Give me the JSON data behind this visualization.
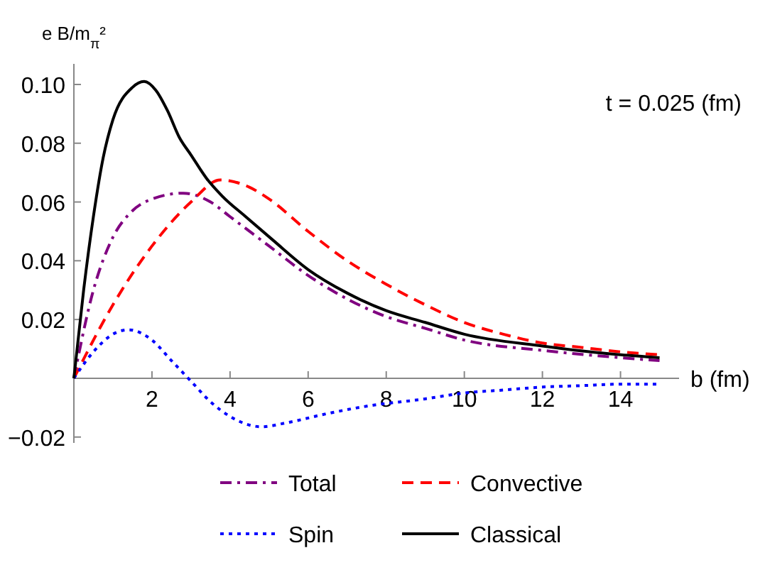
{
  "chart_data": {
    "type": "line",
    "ylabel": "e B/m$_{π}$²",
    "xlabel": "b (fm)",
    "annotations": [
      "t = 0.025 (fm)"
    ],
    "xlim": [
      0,
      15.5
    ],
    "ylim": [
      -0.022,
      0.107
    ],
    "xticks": [
      2,
      4,
      6,
      8,
      10,
      12,
      14
    ],
    "yticks": [
      -0.02,
      0.02,
      0.04,
      0.06,
      0.08,
      {
        "value": 0.1,
        "label": "0.10"
      }
    ],
    "grid": false,
    "legend": "bottom",
    "series": [
      {
        "name": "Total",
        "color": "#800080",
        "line_style": "dashdot",
        "x": [
          0,
          0.5,
          1,
          1.5,
          2,
          2.8,
          3.5,
          4,
          5,
          6,
          7,
          8,
          9,
          10,
          12,
          14,
          15
        ],
        "values": [
          0,
          0.03,
          0.048,
          0.057,
          0.061,
          0.063,
          0.06,
          0.055,
          0.045,
          0.035,
          0.027,
          0.021,
          0.017,
          0.013,
          0.0095,
          0.007,
          0.006
        ]
      },
      {
        "name": "Convective",
        "color": "#ff0000",
        "line_style": "dashed",
        "x": [
          0,
          1,
          2,
          3,
          3.75,
          4.5,
          5,
          6,
          7,
          8,
          9,
          10,
          11,
          12,
          13,
          14,
          15
        ],
        "values": [
          0,
          0.025,
          0.045,
          0.06,
          0.0675,
          0.065,
          0.061,
          0.05,
          0.04,
          0.032,
          0.025,
          0.019,
          0.015,
          0.012,
          0.0105,
          0.009,
          0.008
        ]
      },
      {
        "name": "Spin",
        "color": "#0000ff",
        "line_style": "dotted",
        "x": [
          0,
          0.5,
          1,
          1.4,
          2,
          2.5,
          3,
          3.5,
          4,
          4.8,
          5.5,
          6.5,
          7.5,
          9,
          10,
          11,
          12,
          13,
          14,
          15
        ],
        "values": [
          0,
          0.009,
          0.015,
          0.0165,
          0.013,
          0.006,
          -0.001,
          -0.008,
          -0.013,
          -0.0165,
          -0.015,
          -0.012,
          -0.0095,
          -0.007,
          -0.005,
          -0.004,
          -0.003,
          -0.0025,
          -0.002,
          -0.002
        ]
      },
      {
        "name": "Classical",
        "color": "#000000",
        "line_style": "solid",
        "x": [
          0,
          0.25,
          0.5,
          0.75,
          1,
          1.5,
          1.8,
          2.1,
          2.4,
          2.7,
          3,
          3.4,
          3.8,
          4.4,
          5.1,
          6,
          7,
          8,
          9,
          10,
          12,
          14,
          15
        ],
        "values": [
          0,
          0.03,
          0.055,
          0.075,
          0.088,
          0.099,
          0.101,
          0.098,
          0.091,
          0.082,
          0.076,
          0.068,
          0.062,
          0.055,
          0.047,
          0.037,
          0.029,
          0.023,
          0.019,
          0.015,
          0.011,
          0.008,
          0.007
        ]
      }
    ]
  }
}
